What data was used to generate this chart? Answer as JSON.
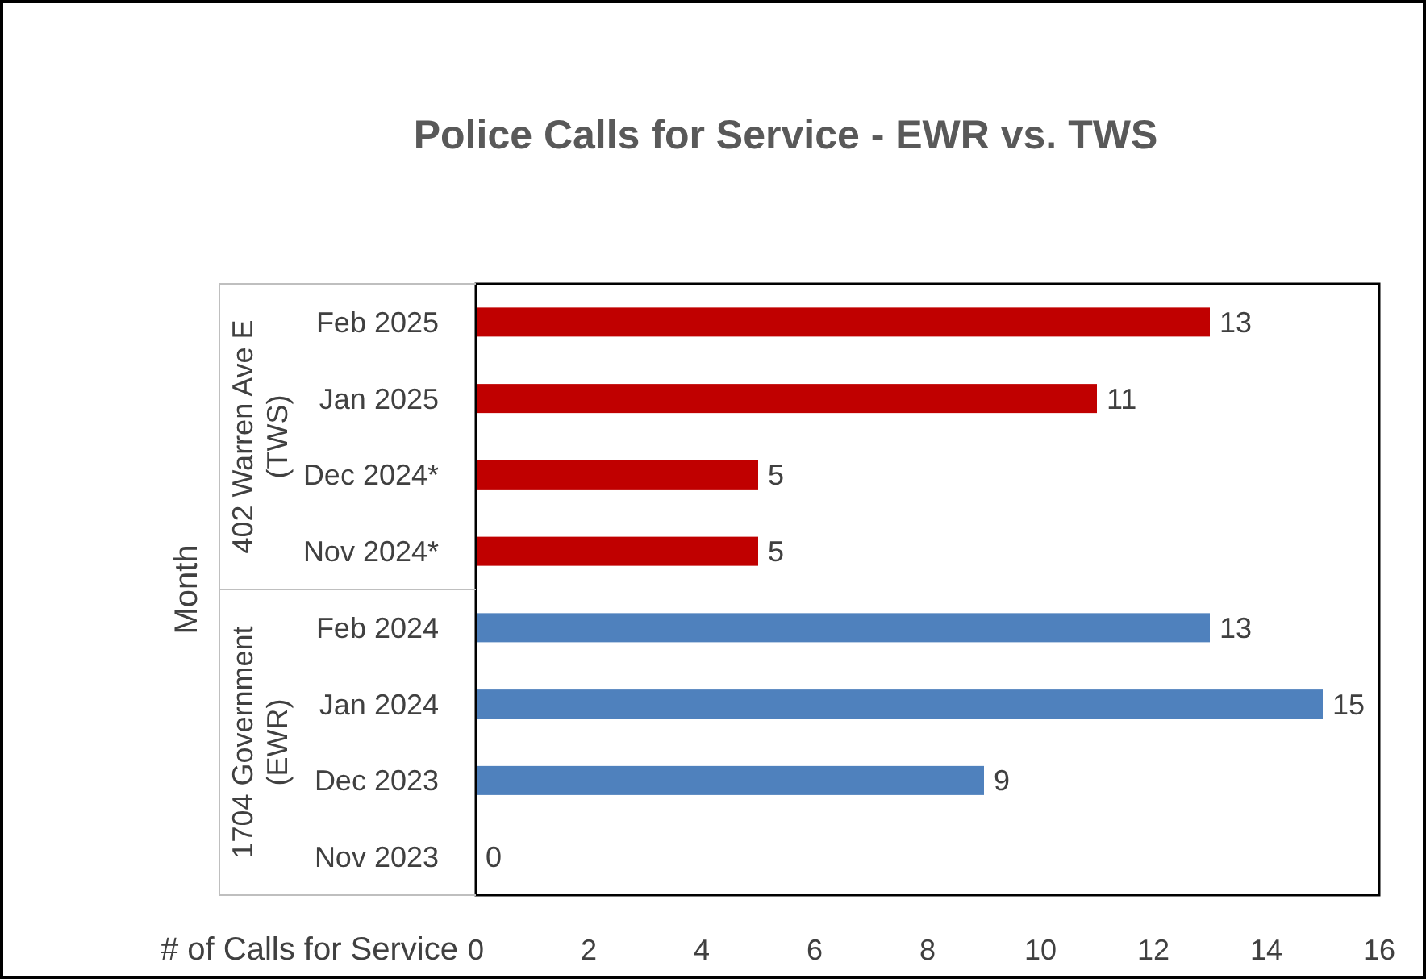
{
  "chart_data": {
    "type": "bar",
    "orientation": "horizontal",
    "title": "Police Calls for Service - EWR vs. TWS",
    "xlabel": "# of Calls for Service",
    "ylabel": "Month",
    "categories": [
      "Feb 2025",
      "Jan 2025",
      "Dec 2024*",
      "Nov 2024*",
      "Feb 2024",
      "Jan 2024",
      "Dec 2023",
      "Nov 2023"
    ],
    "values": [
      13,
      11,
      5,
      5,
      13,
      15,
      9,
      0
    ],
    "colors": [
      "#c00000",
      "#c00000",
      "#c00000",
      "#c00000",
      "#4f81bd",
      "#4f81bd",
      "#4f81bd",
      "#4f81bd"
    ],
    "xlim": [
      0,
      16
    ],
    "xticks": [
      0,
      2,
      4,
      6,
      8,
      10,
      12,
      14,
      16
    ],
    "data_labels": true,
    "grid": false,
    "annotations": [
      "402 Warren Ave E (TWS)",
      "1704 Government (EWR)"
    ]
  }
}
